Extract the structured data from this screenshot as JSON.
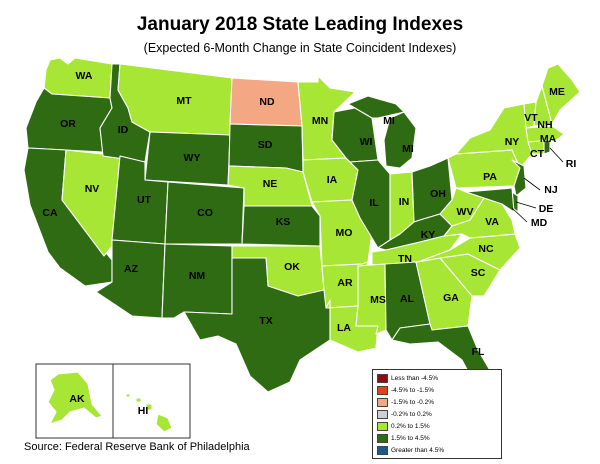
{
  "title": "January 2018 State Leading Indexes",
  "subtitle": "(Expected 6-Month Change in State Coincident Indexes)",
  "source": "Source: Federal Reserve Bank of Philadelphia",
  "colors": {
    "dark_red": "#8b0d14",
    "red": "#e8401a",
    "salmon": "#f4a783",
    "gray": "#cfcfcf",
    "light_green": "#a8e636",
    "dark_green": "#2f6b12",
    "blue": "#1b5a8a"
  },
  "legend": [
    {
      "label": "Less than -4.5%",
      "color": "#8b0d14"
    },
    {
      "label": "-4.5% to -1.5%",
      "color": "#e8401a"
    },
    {
      "label": "-1.5% to -0.2%",
      "color": "#f4a783"
    },
    {
      "label": "-0.2% to 0.2%",
      "color": "#cfcfcf"
    },
    {
      "label": "0.2% to 1.5%",
      "color": "#a8e636"
    },
    {
      "label": "1.5% to 4.5%",
      "color": "#2f6b12"
    },
    {
      "label": "Greater than 4.5%",
      "color": "#1b5a8a"
    }
  ],
  "states": {
    "WA": "0.2% to 1.5%",
    "OR": "1.5% to 4.5%",
    "CA": "1.5% to 4.5%",
    "NV": "0.2% to 1.5%",
    "ID": "1.5% to 4.5%",
    "MT": "0.2% to 1.5%",
    "WY": "1.5% to 4.5%",
    "UT": "1.5% to 4.5%",
    "AZ": "1.5% to 4.5%",
    "CO": "1.5% to 4.5%",
    "NM": "1.5% to 4.5%",
    "ND": "-1.5% to -0.2%",
    "SD": "1.5% to 4.5%",
    "NE": "0.2% to 1.5%",
    "KS": "1.5% to 4.5%",
    "OK": "0.2% to 1.5%",
    "TX": "1.5% to 4.5%",
    "MN": "0.2% to 1.5%",
    "IA": "0.2% to 1.5%",
    "MO": "0.2% to 1.5%",
    "AR": "0.2% to 1.5%",
    "LA": "0.2% to 1.5%",
    "WI": "1.5% to 4.5%",
    "IL": "1.5% to 4.5%",
    "MI": "1.5% to 4.5%",
    "IN": "0.2% to 1.5%",
    "OH": "1.5% to 4.5%",
    "KY": "1.5% to 4.5%",
    "TN": "0.2% to 1.5%",
    "MS": "0.2% to 1.5%",
    "AL": "1.5% to 4.5%",
    "GA": "0.2% to 1.5%",
    "FL": "1.5% to 4.5%",
    "SC": "0.2% to 1.5%",
    "NC": "0.2% to 1.5%",
    "VA": "0.2% to 1.5%",
    "WV": "0.2% to 1.5%",
    "PA": "0.2% to 1.5%",
    "NY": "0.2% to 1.5%",
    "ME": "0.2% to 1.5%",
    "VT": "0.2% to 1.5%",
    "NH": "0.2% to 1.5%",
    "MA": "0.2% to 1.5%",
    "CT": "0.2% to 1.5%",
    "RI": "1.5% to 4.5%",
    "NJ": "1.5% to 4.5%",
    "DE": "1.5% to 4.5%",
    "MD": "1.5% to 4.5%",
    "AK": "0.2% to 1.5%",
    "HI": "0.2% to 1.5%"
  },
  "labels": {
    "WA": "WA",
    "OR": "OR",
    "CA": "CA",
    "NV": "NV",
    "ID": "ID",
    "MT": "MT",
    "WY": "WY",
    "UT": "UT",
    "AZ": "AZ",
    "CO": "CO",
    "NM": "NM",
    "ND": "ND",
    "SD": "SD",
    "NE": "NE",
    "KS": "KS",
    "OK": "OK",
    "TX": "TX",
    "MN": "MN",
    "IA": "IA",
    "MO": "MO",
    "AR": "AR",
    "LA": "LA",
    "WI": "WI",
    "IL": "IL",
    "MI_UP": "MI",
    "MI": "MI",
    "IN": "IN",
    "OH": "OH",
    "KY": "KY",
    "TN": "TN",
    "MS": "MS",
    "AL": "AL",
    "GA": "GA",
    "FL": "FL",
    "SC": "SC",
    "NC": "NC",
    "VA": "VA",
    "WV": "WV",
    "PA": "PA",
    "NY": "NY",
    "ME": "ME",
    "VT": "VT",
    "NH": "NH",
    "MA": "MA",
    "CT": "CT",
    "RI": "RI",
    "NJ": "NJ",
    "DE": "DE",
    "MD": "MD",
    "AK": "AK",
    "HI": "HI"
  }
}
